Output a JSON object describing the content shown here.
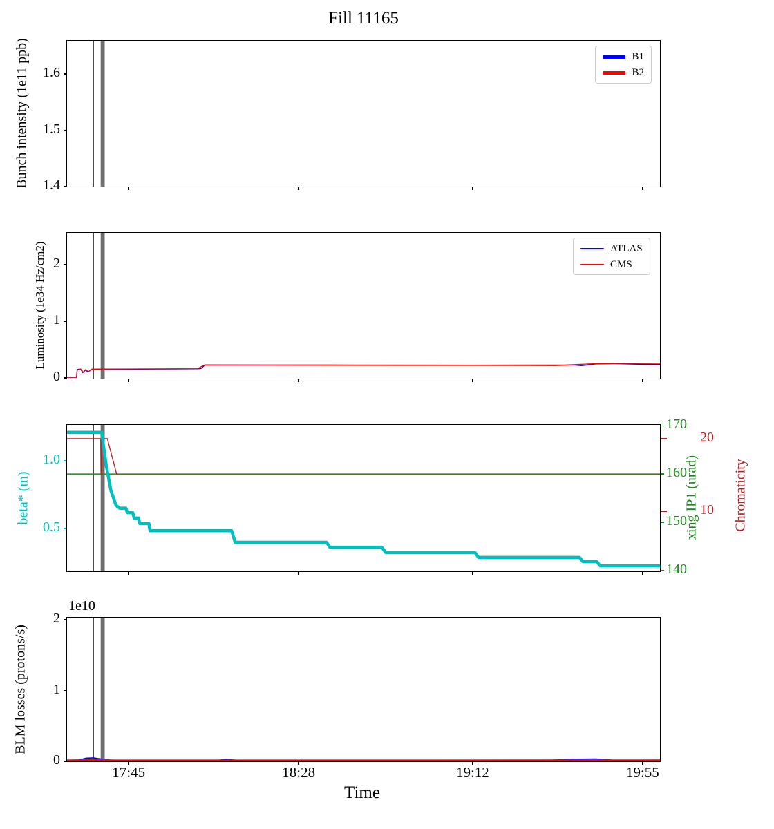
{
  "title": "Fill 11165",
  "chart_data": {
    "type": "line",
    "title": "Fill 11165",
    "xlabel": "Time",
    "x_unit": "time_of_day_decimal_hours",
    "xlim": [
      17.49,
      19.99
    ],
    "x_ticks": [
      {
        "t": 17.75,
        "label": "17:45"
      },
      {
        "t": 18.4667,
        "label": "18:28"
      },
      {
        "t": 19.2,
        "label": "19:12"
      },
      {
        "t": 19.9167,
        "label": "19:55"
      }
    ],
    "events": {
      "black_vline_t": 17.601,
      "gray_span": [
        17.632,
        17.649
      ],
      "gray_color": "#6f6f6f"
    },
    "subplots": [
      {
        "name": "bunch-intensity",
        "ylabel": "Bunch intensity (1e11 ppb)",
        "ylim": [
          1.4,
          1.6589
        ],
        "yticks": [
          {
            "v": 1.4,
            "label": "1.4"
          },
          {
            "v": 1.5,
            "label": "1.5"
          },
          {
            "v": 1.6,
            "label": "1.6"
          }
        ],
        "series": [
          {
            "name": "B1",
            "color": "#0000ff",
            "lw": 3,
            "points": []
          },
          {
            "name": "B2",
            "color": "#ff0000",
            "lw": 3,
            "points": []
          }
        ],
        "legend": {
          "entries": [
            {
              "label": "B1",
              "color": "#0000ff",
              "lw": 5
            },
            {
              "label": "B2",
              "color": "#ff0000",
              "lw": 5
            }
          ]
        }
      },
      {
        "name": "luminosity",
        "ylabel": "Luminosity (1e34 Hz/cm2)",
        "ylim": [
          -0.012,
          2.561
        ],
        "yticks": [
          {
            "v": 0,
            "label": "0"
          },
          {
            "v": 1,
            "label": "1"
          },
          {
            "v": 2,
            "label": "2"
          }
        ],
        "series": [
          {
            "name": "ATLAS",
            "color": "#0000ff",
            "lw": 1.3,
            "points": [
              [
                17.49,
                0.01
              ],
              [
                17.53,
                0.01
              ],
              [
                17.533,
                0.15
              ],
              [
                17.548,
                0.155
              ],
              [
                17.556,
                0.09
              ],
              [
                17.568,
                0.145
              ],
              [
                17.578,
                0.1
              ],
              [
                17.592,
                0.15
              ],
              [
                17.63,
                0.155
              ],
              [
                17.8,
                0.155
              ],
              [
                18.04,
                0.16
              ],
              [
                18.055,
                0.165
              ],
              [
                18.07,
                0.225
              ],
              [
                18.3,
                0.225
              ],
              [
                18.9,
                0.222
              ],
              [
                19.4,
                0.22
              ],
              [
                19.55,
                0.218
              ],
              [
                19.62,
                0.23
              ],
              [
                19.66,
                0.215
              ],
              [
                19.72,
                0.245
              ],
              [
                19.8,
                0.25
              ],
              [
                19.9,
                0.24
              ],
              [
                19.99,
                0.235
              ]
            ]
          },
          {
            "name": "CMS",
            "color": "#ff0000",
            "lw": 1.3,
            "points": [
              [
                17.49,
                0.012
              ],
              [
                17.53,
                0.012
              ],
              [
                17.533,
                0.145
              ],
              [
                17.55,
                0.15
              ],
              [
                17.558,
                0.1
              ],
              [
                17.57,
                0.14
              ],
              [
                17.58,
                0.11
              ],
              [
                17.595,
                0.155
              ],
              [
                17.7,
                0.158
              ],
              [
                18.04,
                0.163
              ],
              [
                18.07,
                0.23
              ],
              [
                18.6,
                0.228
              ],
              [
                19.2,
                0.225
              ],
              [
                19.6,
                0.228
              ],
              [
                19.72,
                0.252
              ],
              [
                19.85,
                0.255
              ],
              [
                19.99,
                0.255
              ]
            ]
          }
        ],
        "legend": {
          "entries": [
            {
              "label": "ATLAS",
              "color": "#0000ff",
              "lw": 2
            },
            {
              "label": "CMS",
              "color": "#ff0000",
              "lw": 2
            }
          ]
        }
      },
      {
        "name": "optics",
        "ylabel": "beta* (m)",
        "ylabel_color": "#00bfbf",
        "ytick_color": "#00bfbf",
        "ylim": [
          0.1837,
          1.2653
        ],
        "yticks": [
          {
            "v": 0.5,
            "label": "0.5"
          },
          {
            "v": 1.0,
            "label": "1.0"
          }
        ],
        "right1": {
          "label": "xing IP1 (urad)",
          "color": "#188818",
          "ylim": [
            139.8,
            170.2
          ],
          "ticks": [
            {
              "v": 140,
              "label": "140"
            },
            {
              "v": 150,
              "label": "150"
            },
            {
              "v": 160,
              "label": "160"
            },
            {
              "v": 170,
              "label": "170"
            }
          ]
        },
        "right2": {
          "label": "Chromaticity",
          "color": "#b22222",
          "ylim": [
            1.7,
            21.9
          ],
          "ticks": [
            {
              "v": 10,
              "label": "10"
            },
            {
              "v": 20,
              "label": "20"
            }
          ]
        },
        "series": [
          {
            "name": "xing IP1",
            "axis": "right1",
            "color": "#188818",
            "lw": 1.5,
            "points": [
              [
                17.49,
                160
              ],
              [
                19.99,
                160
              ]
            ]
          },
          {
            "name": "Chromaticity",
            "axis": "right2",
            "color": "#b22222",
            "lw": 1.3,
            "points": [
              [
                17.49,
                20
              ],
              [
                17.632,
                20
              ],
              [
                17.633,
                15
              ],
              [
                17.636,
                15
              ],
              [
                17.637,
                20
              ],
              [
                17.66,
                20
              ],
              [
                17.7,
                15
              ],
              [
                19.99,
                15
              ]
            ]
          },
          {
            "name": "beta*",
            "color": "#00bfbf",
            "lw": 4.5,
            "points": [
              [
                17.49,
                1.21
              ],
              [
                17.636,
                1.21
              ],
              [
                17.655,
                0.97
              ],
              [
                17.675,
                0.78
              ],
              [
                17.697,
                0.67
              ],
              [
                17.712,
                0.65
              ],
              [
                17.738,
                0.65
              ],
              [
                17.744,
                0.617
              ],
              [
                17.767,
                0.617
              ],
              [
                17.773,
                0.577
              ],
              [
                17.791,
                0.577
              ],
              [
                17.797,
                0.536
              ],
              [
                17.835,
                0.536
              ],
              [
                17.84,
                0.483
              ],
              [
                18.184,
                0.483
              ],
              [
                18.199,
                0.398
              ],
              [
                18.584,
                0.398
              ],
              [
                18.598,
                0.362
              ],
              [
                18.817,
                0.362
              ],
              [
                18.834,
                0.322
              ],
              [
                19.21,
                0.322
              ],
              [
                19.225,
                0.286
              ],
              [
                19.651,
                0.286
              ],
              [
                19.665,
                0.255
              ],
              [
                19.724,
                0.255
              ],
              [
                19.738,
                0.224
              ],
              [
                19.99,
                0.224
              ]
            ]
          }
        ]
      },
      {
        "name": "blm-losses",
        "ylabel": "BLM losses (protons/s)",
        "offset_text": "1e10",
        "ylim": [
          0,
          2.03
        ],
        "yticks": [
          {
            "v": 0,
            "label": "0"
          },
          {
            "v": 1,
            "label": "1"
          },
          {
            "v": 2,
            "label": "2"
          }
        ],
        "series": [
          {
            "name": "B1 losses",
            "color": "#0000ff",
            "lw": 1.6,
            "points": [
              [
                17.49,
                0.015
              ],
              [
                17.54,
                0.02
              ],
              [
                17.57,
                0.045
              ],
              [
                17.6,
                0.05
              ],
              [
                17.63,
                0.035
              ],
              [
                17.67,
                0.018
              ],
              [
                17.75,
                0.012
              ],
              [
                18.12,
                0.012
              ],
              [
                18.16,
                0.028
              ],
              [
                18.22,
                0.012
              ],
              [
                19.5,
                0.012
              ],
              [
                19.62,
                0.03
              ],
              [
                19.72,
                0.034
              ],
              [
                19.8,
                0.015
              ],
              [
                19.99,
                0.018
              ]
            ]
          },
          {
            "name": "B2 losses",
            "color": "#ff0000",
            "lw": 2.4,
            "points": [
              [
                17.49,
                0.014
              ],
              [
                17.6,
                0.02
              ],
              [
                17.7,
                0.014
              ],
              [
                18.5,
                0.014
              ],
              [
                19.99,
                0.016
              ]
            ]
          }
        ]
      }
    ]
  }
}
